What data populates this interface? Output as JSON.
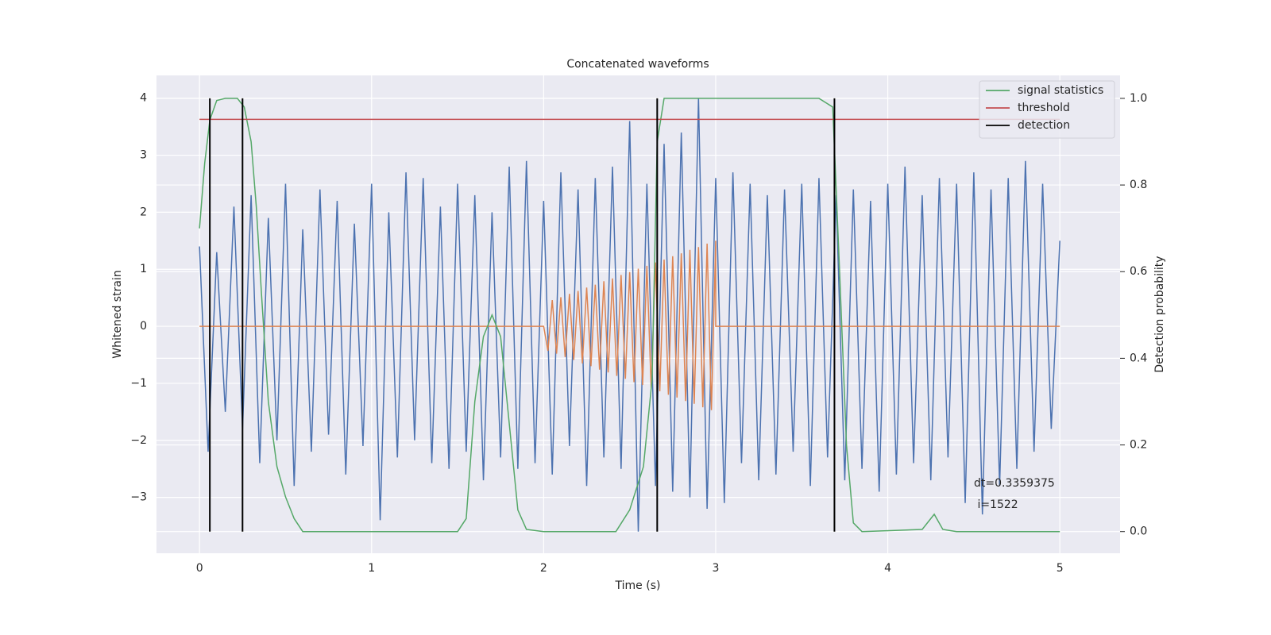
{
  "chart_data": {
    "type": "line",
    "title": "Concatenated waveforms",
    "xlabel": "Time (s)",
    "ylabel": "Whitened strain",
    "y2label": "Detection probability",
    "xlim": [
      -0.25,
      5.35
    ],
    "ylim": [
      -3.98,
      4.4
    ],
    "y2lim": [
      -0.05,
      1.053
    ],
    "xticks": [
      0,
      1,
      2,
      3,
      4,
      5
    ],
    "yticks": [
      {
        "value": -3,
        "label": "−3"
      },
      {
        "value": -2,
        "label": "−2"
      },
      {
        "value": -1,
        "label": "−1"
      },
      0,
      1,
      2,
      3,
      4
    ],
    "y2ticks": [
      {
        "value": 0,
        "label": "0.0"
      },
      0.2,
      0.4,
      0.6,
      0.8,
      {
        "value": 1,
        "label": "1.0"
      }
    ],
    "grid": true,
    "legend": "upper right",
    "series": [
      {
        "color": "#4c72b0",
        "x": [
          0,
          0.05,
          0.1,
          0.15,
          0.2,
          0.25,
          0.3,
          0.35,
          0.4,
          0.45,
          0.5,
          0.55,
          0.6,
          0.65,
          0.7,
          0.75,
          0.8,
          0.85,
          0.9,
          0.95,
          1,
          1.05,
          1.1,
          1.15,
          1.2,
          1.25,
          1.3,
          1.35,
          1.4,
          1.45,
          1.5,
          1.55,
          1.6,
          1.65,
          1.7,
          1.75,
          1.8,
          1.85,
          1.9,
          1.95,
          2,
          2.05,
          2.1,
          2.15,
          2.2,
          2.25,
          2.3,
          2.35,
          2.4,
          2.45,
          2.5,
          2.55,
          2.6,
          2.65,
          2.7,
          2.75,
          2.8,
          2.85,
          2.9,
          2.95,
          3,
          3.05,
          3.1,
          3.15,
          3.2,
          3.25,
          3.3,
          3.35,
          3.4,
          3.45,
          3.5,
          3.55,
          3.6,
          3.65,
          3.7,
          3.75,
          3.8,
          3.85,
          3.9,
          3.95,
          4,
          4.05,
          4.1,
          4.15,
          4.2,
          4.25,
          4.3,
          4.35,
          4.4,
          4.45,
          4.5,
          4.55,
          4.6,
          4.65,
          4.7,
          4.75,
          4.8,
          4.85,
          4.9,
          4.95,
          5
        ],
        "values": [
          1.4,
          -2.2,
          1.3,
          -1.5,
          2.1,
          -1.8,
          2.3,
          -2.4,
          1.9,
          -2.0,
          2.5,
          -2.8,
          1.7,
          -2.2,
          2.4,
          -1.9,
          2.2,
          -2.6,
          1.8,
          -2.1,
          2.5,
          -3.4,
          2.0,
          -2.3,
          2.7,
          -2.0,
          2.6,
          -2.4,
          2.1,
          -2.5,
          2.5,
          -2.2,
          2.3,
          -2.7,
          2.0,
          -2.3,
          2.8,
          -2.5,
          2.9,
          -2.4,
          2.2,
          -2.6,
          2.7,
          -2.1,
          2.4,
          -2.8,
          2.6,
          -2.3,
          2.8,
          -2.5,
          3.6,
          -3.6,
          2.5,
          -2.8,
          3.2,
          -2.9,
          3.4,
          -3.0,
          4.0,
          -3.2,
          2.6,
          -3.1,
          2.7,
          -2.4,
          2.5,
          -2.7,
          2.3,
          -2.6,
          2.4,
          -2.2,
          2.5,
          -2.8,
          2.6,
          -2.3,
          2.3,
          -2.7,
          2.4,
          -2.5,
          2.2,
          -2.9,
          2.5,
          -2.6,
          2.8,
          -2.4,
          2.3,
          -2.7,
          2.6,
          -2.3,
          2.5,
          -3.1,
          2.7,
          -3.3,
          2.4,
          -2.8,
          2.6,
          -2.5,
          2.9,
          -2.2,
          2.5,
          -1.8,
          1.5
        ]
      },
      {
        "color": "#dd8452",
        "x": [
          0,
          2,
          2.025,
          2.05,
          2.075,
          2.1,
          2.125,
          2.15,
          2.175,
          2.2,
          2.225,
          2.25,
          2.275,
          2.3,
          2.325,
          2.35,
          2.375,
          2.4,
          2.425,
          2.45,
          2.475,
          2.5,
          2.525,
          2.55,
          2.575,
          2.6,
          2.625,
          2.65,
          2.675,
          2.7,
          2.725,
          2.75,
          2.775,
          2.8,
          2.825,
          2.85,
          2.875,
          2.9,
          2.925,
          2.95,
          2.975,
          3,
          3,
          5
        ],
        "values": [
          0,
          0,
          -0.43,
          0.46,
          -0.48,
          0.51,
          -0.54,
          0.57,
          -0.59,
          0.62,
          -0.65,
          0.68,
          -0.7,
          0.73,
          -0.76,
          0.79,
          -0.81,
          0.84,
          -0.87,
          0.9,
          -0.92,
          0.95,
          -0.98,
          1.01,
          -1.03,
          1.06,
          -1.09,
          1.12,
          -1.14,
          1.17,
          -1.2,
          1.23,
          -1.25,
          1.28,
          -1.31,
          1.34,
          -1.36,
          1.39,
          -1.42,
          1.45,
          -1.47,
          1.5,
          0,
          0
        ]
      },
      {
        "name": "signal statistics",
        "color": "#55a868",
        "axis": "y2",
        "x": [
          0,
          0.03,
          0.06,
          0.1,
          0.15,
          0.22,
          0.26,
          0.3,
          0.33,
          0.36,
          0.4,
          0.45,
          0.5,
          0.55,
          0.6,
          1.0,
          1.5,
          1.55,
          1.6,
          1.65,
          1.7,
          1.75,
          1.8,
          1.85,
          1.9,
          2.0,
          2.42,
          2.5,
          2.58,
          2.63,
          2.66,
          2.7,
          3.0,
          3.6,
          3.68,
          3.72,
          3.76,
          3.8,
          3.85,
          4.2,
          4.27,
          4.32,
          4.4,
          5.0
        ],
        "values": [
          0.7,
          0.85,
          0.95,
          0.995,
          1.0,
          1.0,
          0.98,
          0.9,
          0.75,
          0.55,
          0.3,
          0.15,
          0.08,
          0.03,
          0.0,
          0,
          0,
          0.03,
          0.3,
          0.45,
          0.5,
          0.45,
          0.25,
          0.05,
          0.005,
          0,
          0,
          0.05,
          0.15,
          0.35,
          0.9,
          1.0,
          1.0,
          1.0,
          0.98,
          0.6,
          0.2,
          0.02,
          0,
          0.005,
          0.04,
          0.005,
          0,
          0
        ]
      },
      {
        "name": "threshold",
        "color": "#c44e52",
        "x": [
          0,
          5
        ],
        "values": [
          3.63,
          3.63
        ]
      }
    ],
    "detection": {
      "name": "detection",
      "color": "#000000",
      "x": [
        0.06,
        0.25,
        2.66,
        3.69
      ]
    },
    "annotation": [
      "dt=0.3359375",
      " i=1522"
    ]
  }
}
